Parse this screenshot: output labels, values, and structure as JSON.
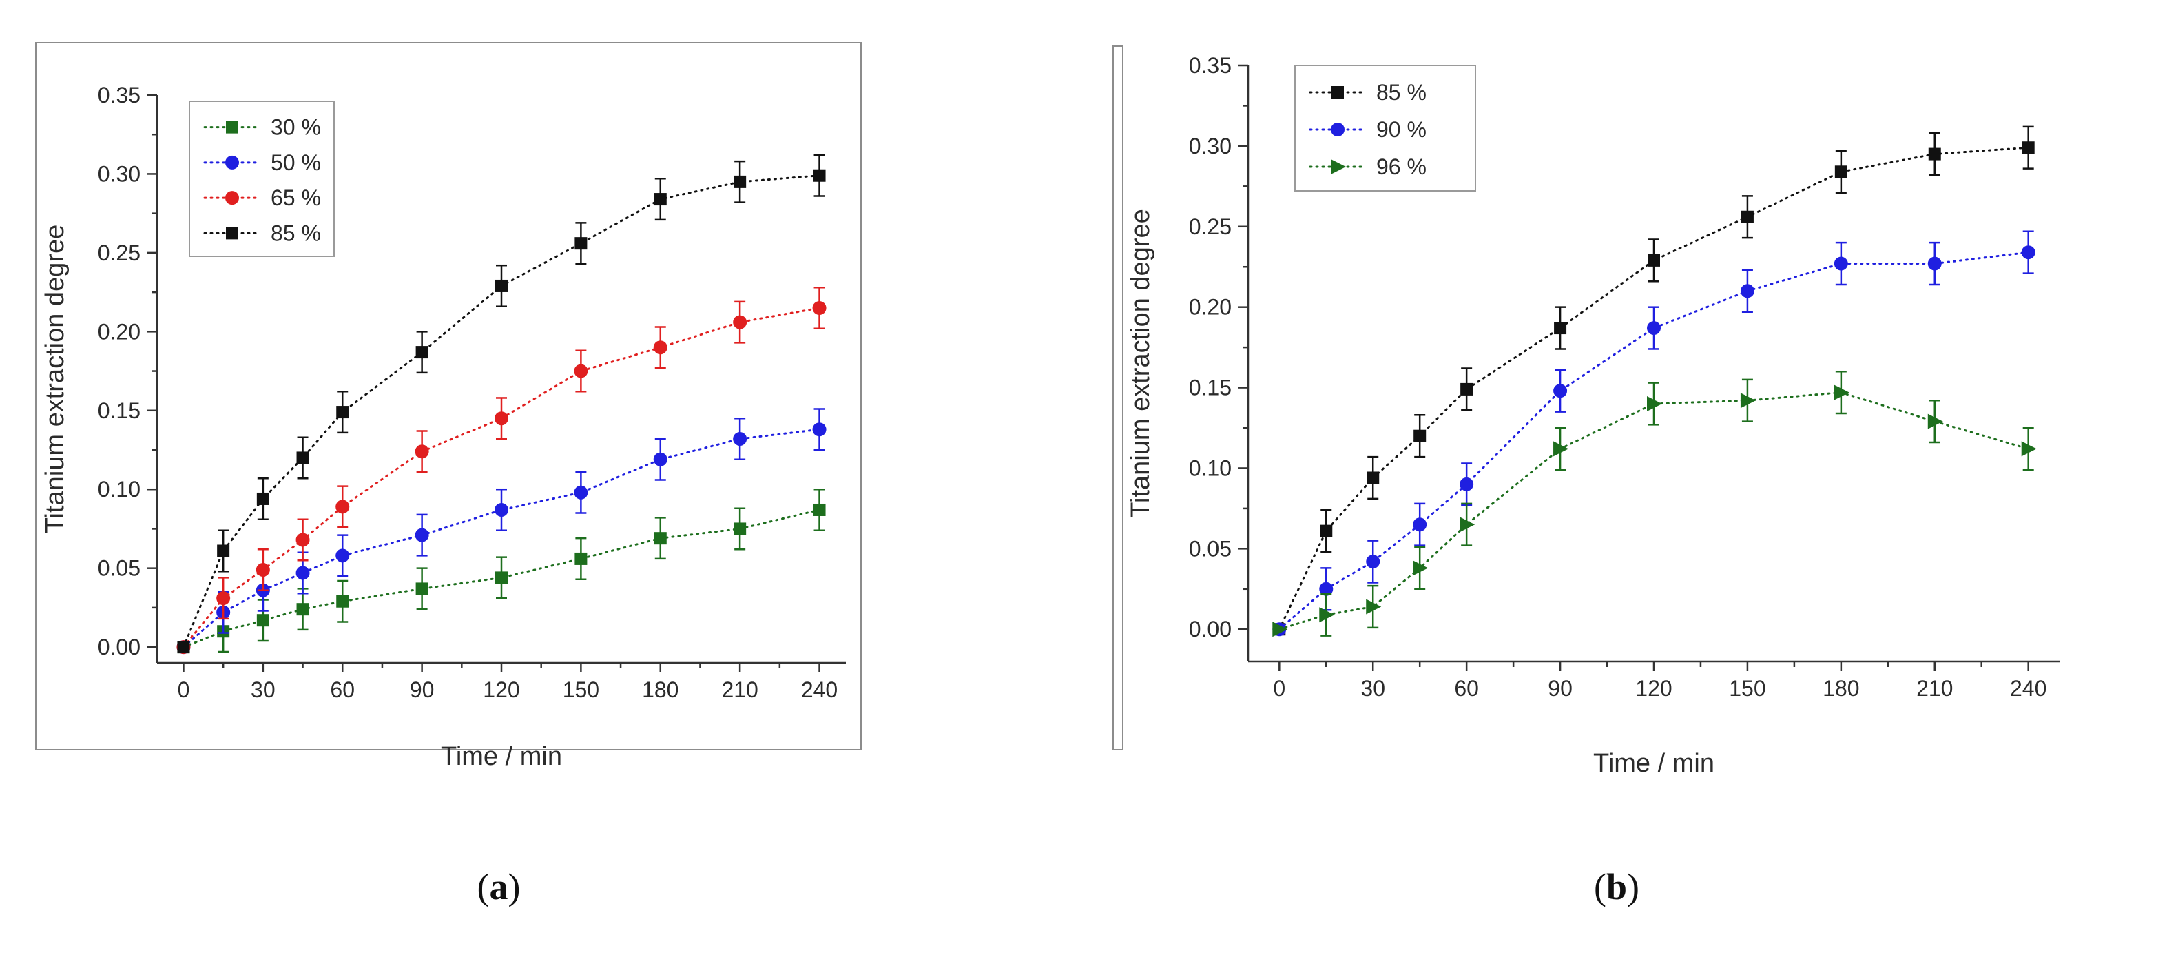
{
  "colors": {
    "black": "#111111",
    "blue": "#1f1fe0",
    "red": "#e01f1f",
    "green": "#1d6e1d"
  },
  "chart_data": [
    {
      "type": "line",
      "caption": {
        "open": "(",
        "letter": "a",
        "close": ")"
      },
      "xlabel": "Time / min",
      "ylabel": "Titanium extraction degree",
      "xlim": [
        -10,
        250
      ],
      "ylim": [
        -0.01,
        0.35
      ],
      "xticks": [
        "0",
        "30",
        "60",
        "90",
        "120",
        "150",
        "180",
        "210",
        "240"
      ],
      "yticks": [
        "0.00",
        "0.05",
        "0.10",
        "0.15",
        "0.20",
        "0.25",
        "0.30",
        "0.35"
      ],
      "legend_position": "top-left",
      "x": [
        0,
        15,
        30,
        45,
        60,
        90,
        120,
        150,
        180,
        210,
        240
      ],
      "series": [
        {
          "name": "30 %",
          "marker": "square",
          "color": "green",
          "values": [
            0,
            0.01,
            0.017,
            0.024,
            0.029,
            0.037,
            0.044,
            0.056,
            0.069,
            0.075,
            0.087
          ],
          "error": 0.013
        },
        {
          "name": "50 %",
          "marker": "circle",
          "color": "blue",
          "values": [
            0,
            0.022,
            0.036,
            0.047,
            0.058,
            0.071,
            0.087,
            0.098,
            0.119,
            0.132,
            0.138
          ],
          "error": 0.013
        },
        {
          "name": "65 %",
          "marker": "circle",
          "color": "red",
          "values": [
            0,
            0.031,
            0.049,
            0.068,
            0.089,
            0.124,
            0.145,
            0.175,
            0.19,
            0.206,
            0.215
          ],
          "error": 0.013
        },
        {
          "name": "85 %",
          "marker": "square",
          "color": "black",
          "values": [
            0,
            0.061,
            0.094,
            0.12,
            0.149,
            0.187,
            0.229,
            0.256,
            0.284,
            0.295,
            0.299
          ],
          "error": 0.013
        }
      ]
    },
    {
      "type": "line",
      "caption": {
        "open": "(",
        "letter": "b",
        "close": ")"
      },
      "xlabel": "Time / min",
      "ylabel": "Titanium extraction degree",
      "xlim": [
        -10,
        250
      ],
      "ylim": [
        -0.02,
        0.35
      ],
      "xticks": [
        "0",
        "30",
        "60",
        "90",
        "120",
        "150",
        "180",
        "210",
        "240"
      ],
      "yticks": [
        "0.00",
        "0.05",
        "0.10",
        "0.15",
        "0.20",
        "0.25",
        "0.30",
        "0.35"
      ],
      "legend_position": "top-left",
      "x": [
        0,
        15,
        30,
        45,
        60,
        90,
        120,
        150,
        180,
        210,
        240
      ],
      "series": [
        {
          "name": "85 %",
          "marker": "square",
          "color": "black",
          "values": [
            0,
            0.061,
            0.094,
            0.12,
            0.149,
            0.187,
            0.229,
            0.256,
            0.284,
            0.295,
            0.299
          ],
          "error": 0.013
        },
        {
          "name": "90 %",
          "marker": "circle",
          "color": "blue",
          "values": [
            0,
            0.025,
            0.042,
            0.065,
            0.09,
            0.148,
            0.187,
            0.21,
            0.227,
            0.227,
            0.234
          ],
          "error": 0.013
        },
        {
          "name": "96 %",
          "marker": "triangle-right",
          "color": "green",
          "values": [
            0,
            0.009,
            0.014,
            0.038,
            0.065,
            0.112,
            0.14,
            0.142,
            0.147,
            0.129,
            0.112
          ],
          "error": 0.013
        }
      ]
    }
  ]
}
